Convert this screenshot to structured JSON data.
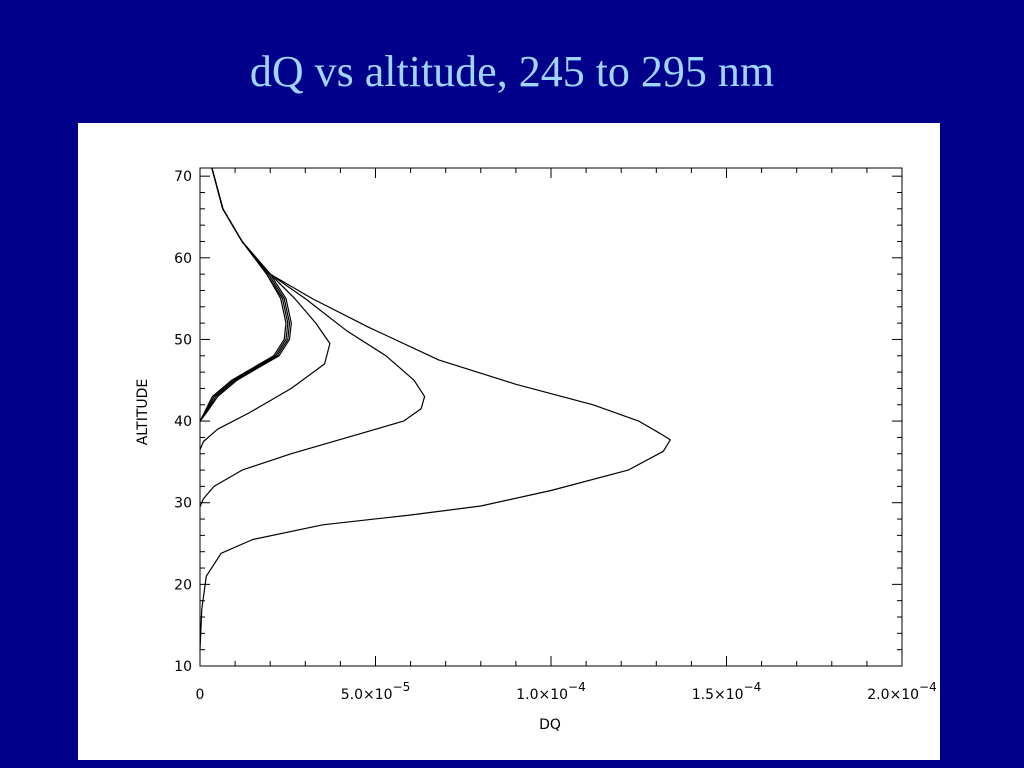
{
  "slide": {
    "title": "dQ vs altitude, 245 to 295 nm"
  },
  "chart_data": {
    "type": "line",
    "xlabel": "DQ",
    "ylabel": "ALTITUDE",
    "xlim": [
      0,
      0.0002
    ],
    "ylim": [
      10,
      71
    ],
    "x_ticks": [
      {
        "value": 0,
        "label": "0"
      },
      {
        "value": 5e-05,
        "label": "5.0×10",
        "exp": "−5"
      },
      {
        "value": 0.0001,
        "label": "1.0×10",
        "exp": "−4"
      },
      {
        "value": 0.00015,
        "label": "1.5×10",
        "exp": "−4"
      },
      {
        "value": 0.0002,
        "label": "2.0×10",
        "exp": "−4"
      }
    ],
    "y_ticks": [
      10,
      20,
      30,
      40,
      50,
      60,
      70
    ],
    "series": [
      {
        "points": [
          [
            3.4e-06,
            71
          ],
          [
            6.5e-06,
            66
          ],
          [
            1.2e-05,
            62
          ],
          [
            1.9e-05,
            58
          ],
          [
            2.3e-05,
            55
          ],
          [
            2.45e-05,
            52
          ],
          [
            2.4e-05,
            50
          ],
          [
            2.1e-05,
            48
          ],
          [
            1.5e-05,
            46.5
          ],
          [
            9e-06,
            45
          ],
          [
            3.5e-06,
            43
          ],
          [
            1.2e-06,
            41
          ],
          [
            0,
            40
          ]
        ]
      },
      {
        "points": [
          [
            3.4e-06,
            71
          ],
          [
            6.5e-06,
            66
          ],
          [
            1.2e-05,
            62
          ],
          [
            1.9e-05,
            58
          ],
          [
            2.35e-05,
            55
          ],
          [
            2.5e-05,
            52
          ],
          [
            2.45e-05,
            50
          ],
          [
            2.15e-05,
            48
          ],
          [
            1.55e-05,
            46.5
          ],
          [
            9.5e-06,
            45
          ],
          [
            4e-06,
            43
          ],
          [
            1.4e-06,
            41
          ],
          [
            0,
            40
          ]
        ]
      },
      {
        "points": [
          [
            3.4e-06,
            71
          ],
          [
            6.5e-06,
            66
          ],
          [
            1.2e-05,
            62
          ],
          [
            1.95e-05,
            58
          ],
          [
            2.4e-05,
            55
          ],
          [
            2.55e-05,
            52
          ],
          [
            2.5e-05,
            50
          ],
          [
            2.2e-05,
            48
          ],
          [
            1.6e-05,
            46.5
          ],
          [
            1e-05,
            45
          ],
          [
            4.5e-06,
            43
          ],
          [
            1.6e-06,
            41
          ],
          [
            0,
            40
          ]
        ]
      },
      {
        "points": [
          [
            3.4e-06,
            71
          ],
          [
            6.5e-06,
            66
          ],
          [
            1.2e-05,
            62
          ],
          [
            2e-05,
            58
          ],
          [
            2.45e-05,
            55
          ],
          [
            2.6e-05,
            52
          ],
          [
            2.55e-05,
            50
          ],
          [
            2.25e-05,
            48
          ],
          [
            1.65e-05,
            46.5
          ],
          [
            1.05e-05,
            45
          ],
          [
            5e-06,
            43
          ],
          [
            1.8e-06,
            41
          ],
          [
            0,
            40
          ]
        ]
      },
      {
        "points": [
          [
            3.4e-06,
            71
          ],
          [
            6.5e-06,
            66
          ],
          [
            1.2e-05,
            62
          ],
          [
            2e-05,
            58
          ],
          [
            2.7e-05,
            55
          ],
          [
            3.3e-05,
            52
          ],
          [
            3.7e-05,
            49.5
          ],
          [
            3.55e-05,
            47
          ],
          [
            2.6e-05,
            44
          ],
          [
            1.4e-05,
            41
          ],
          [
            5e-06,
            39
          ],
          [
            1e-06,
            37.5
          ],
          [
            0,
            36.5
          ]
        ]
      },
      {
        "points": [
          [
            3.4e-06,
            71
          ],
          [
            6.5e-06,
            66
          ],
          [
            1.2e-05,
            62
          ],
          [
            2e-05,
            58
          ],
          [
            3e-05,
            55
          ],
          [
            4.2e-05,
            51
          ],
          [
            5.3e-05,
            48
          ],
          [
            6.1e-05,
            45
          ],
          [
            6.4e-05,
            43
          ],
          [
            6.3e-05,
            41.5
          ],
          [
            5.8e-05,
            40
          ],
          [
            4.2e-05,
            38
          ],
          [
            2.6e-05,
            36
          ],
          [
            1.2e-05,
            34
          ],
          [
            4e-06,
            32
          ],
          [
            1e-06,
            30.5
          ],
          [
            0,
            29.5
          ]
        ]
      },
      {
        "points": [
          [
            3.4e-06,
            71
          ],
          [
            6.5e-06,
            66
          ],
          [
            1.2e-05,
            62
          ],
          [
            2e-05,
            58
          ],
          [
            3.2e-05,
            55
          ],
          [
            4.8e-05,
            51.5
          ],
          [
            6.8e-05,
            47.5
          ],
          [
            9e-05,
            44.5
          ],
          [
            0.000112,
            42
          ],
          [
            0.000125,
            40
          ],
          [
            0.000131,
            38.5
          ],
          [
            0.000134,
            37.7
          ],
          [
            0.000133,
            37
          ],
          [
            0.000132,
            36.3
          ],
          [
            0.000122,
            34
          ],
          [
            0.0001,
            31.5
          ],
          [
            8e-05,
            29.6
          ],
          [
            6e-05,
            28.5
          ],
          [
            3.5e-05,
            27.3
          ],
          [
            1.5e-05,
            25.5
          ],
          [
            6e-06,
            23.8
          ],
          [
            1.8e-06,
            21
          ],
          [
            5e-07,
            17
          ],
          [
            0,
            12
          ]
        ]
      }
    ]
  }
}
